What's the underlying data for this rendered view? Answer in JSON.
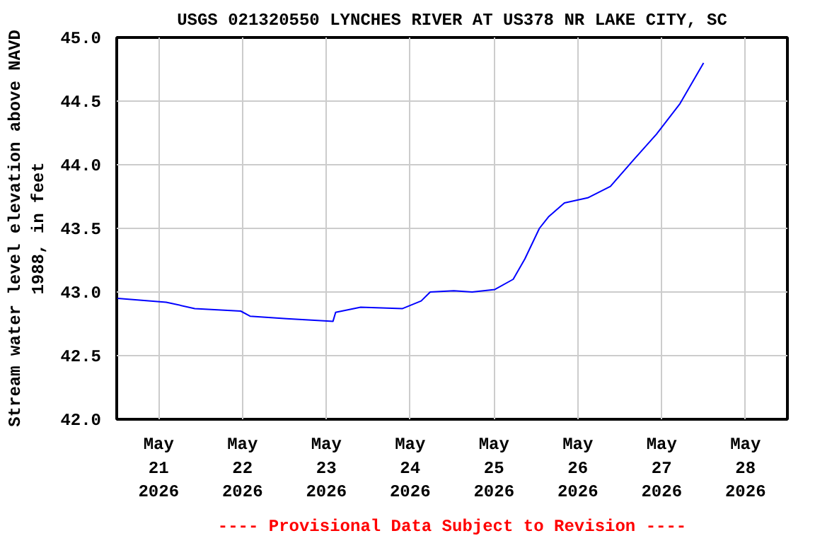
{
  "chart_data": {
    "type": "line",
    "title": "USGS 021320550 LYNCHES RIVER AT US378 NR LAKE CITY, SC",
    "ylabel": "Stream water level elevation above NAVD\n1988, in feet",
    "annotations": [
      "---- Provisional Data Subject to Revision ----"
    ],
    "x": [
      "2026-05-20T12:15",
      "2026-05-21T02:10",
      "2026-05-21T10:20",
      "2026-05-21T23:30",
      "2026-05-22T02:10",
      "2026-05-22T12:40",
      "2026-05-23T01:55",
      "2026-05-23T02:40",
      "2026-05-23T09:50",
      "2026-05-23T21:50",
      "2026-05-24T03:10",
      "2026-05-24T05:45",
      "2026-05-24T12:30",
      "2026-05-24T17:45",
      "2026-05-25T00:15",
      "2026-05-25T05:30",
      "2026-05-25T08:50",
      "2026-05-25T13:00",
      "2026-05-25T15:35",
      "2026-05-25T20:10",
      "2026-05-26T02:50",
      "2026-05-26T09:20",
      "2026-05-26T16:00",
      "2026-05-26T22:30",
      "2026-05-27T05:15",
      "2026-05-27T12:00"
    ],
    "series": [
      {
        "color": "#0000ff",
        "values": [
          42.95,
          42.92,
          42.87,
          42.85,
          42.81,
          42.79,
          42.77,
          42.84,
          42.88,
          42.87,
          42.93,
          43.0,
          43.01,
          43.0,
          43.02,
          43.1,
          43.26,
          43.5,
          43.59,
          43.7,
          43.74,
          43.83,
          44.04,
          44.24,
          44.48,
          44.8
        ]
      }
    ],
    "xlim": [
      "2026-05-20T12:00",
      "2026-05-28T12:00"
    ],
    "xticks": [
      {
        "value": "2026-05-21",
        "label": "May\n21\n2026"
      },
      {
        "value": "2026-05-22",
        "label": "May\n22\n2026"
      },
      {
        "value": "2026-05-23",
        "label": "May\n23\n2026"
      },
      {
        "value": "2026-05-24",
        "label": "May\n24\n2026"
      },
      {
        "value": "2026-05-25",
        "label": "May\n25\n2026"
      },
      {
        "value": "2026-05-26",
        "label": "May\n26\n2026"
      },
      {
        "value": "2026-05-27",
        "label": "May\n27\n2026"
      },
      {
        "value": "2026-05-28",
        "label": "May\n28\n2026"
      }
    ],
    "ylim": [
      42.0,
      45.0
    ],
    "yticks": [
      {
        "value": 42.0,
        "label": "42.0"
      },
      {
        "value": 42.5,
        "label": "42.5"
      },
      {
        "value": 43.0,
        "label": "43.0"
      },
      {
        "value": 43.5,
        "label": "43.5"
      },
      {
        "value": 44.0,
        "label": "44.0"
      },
      {
        "value": 44.5,
        "label": "44.5"
      },
      {
        "value": 45.0,
        "label": "45.0"
      }
    ],
    "grid": true
  }
}
